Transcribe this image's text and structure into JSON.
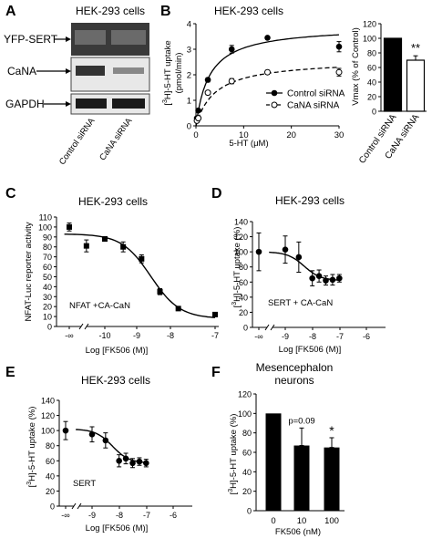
{
  "panel_labels": {
    "A": "A",
    "B": "B",
    "C": "C",
    "D": "D",
    "E": "E",
    "F": "F"
  },
  "chart_data": [
    {
      "id": "A",
      "type": "other",
      "title": "HEK-293 cells",
      "row_labels": [
        "YFP-SERT",
        "CaNA",
        "GAPDH"
      ],
      "lane_labels": [
        "Control siRNA",
        "CaNA siRNA"
      ]
    },
    {
      "id": "B_line",
      "type": "line",
      "title": "HEK-293 cells",
      "xlabel": "5-HT (μM)",
      "ylabel": "[3H]-5-HT uptake (pmol/min)",
      "xlim": [
        0,
        30
      ],
      "ylim": [
        0,
        4
      ],
      "xticks": [
        "0",
        "10",
        "20",
        "30"
      ],
      "yticks": [
        "0",
        "1",
        "2",
        "3",
        "4"
      ],
      "legend": {
        "position": "lower-right",
        "entries": [
          "Control siRNA",
          "CaNA siRNA"
        ]
      },
      "series": [
        {
          "name": "Control siRNA",
          "marker": "filled-circle",
          "style": "solid",
          "x": [
            0.2,
            0.5,
            2.5,
            7.5,
            15,
            30
          ],
          "y": [
            0.3,
            0.6,
            1.8,
            3.0,
            3.45,
            3.1
          ],
          "err": [
            0.05,
            0.05,
            0.08,
            0.15,
            0.05,
            0.2
          ],
          "fit": {
            "vmax": 3.9,
            "km": 2.8
          }
        },
        {
          "name": "CaNA siRNA",
          "marker": "open-circle",
          "style": "dashed",
          "x": [
            0.2,
            0.5,
            2.5,
            7.5,
            15,
            30
          ],
          "y": [
            0.2,
            0.3,
            1.3,
            1.75,
            2.1,
            2.1
          ],
          "err": [
            0.05,
            0.05,
            0.08,
            0.1,
            0.08,
            0.15
          ],
          "fit": {
            "vmax": 2.6,
            "km": 4.0
          }
        }
      ]
    },
    {
      "id": "B_bar",
      "type": "bar",
      "ylabel": "Vmax (% of Control)",
      "ylim": [
        0,
        120
      ],
      "yticks": [
        "0",
        "20",
        "40",
        "60",
        "80",
        "100",
        "120"
      ],
      "categories": [
        "Control siRNA",
        "CaNA siRNA"
      ],
      "values": [
        100,
        70
      ],
      "errors": [
        0,
        6
      ],
      "fills": [
        "#000000",
        "#ffffff"
      ],
      "annotations": [
        {
          "category": "CaNA siRNA",
          "text": "**"
        }
      ]
    },
    {
      "id": "C",
      "type": "scatter",
      "title": "HEK-293 cells",
      "xlabel": "Log [FK506 (M)]",
      "ylabel": "NFAT-Luc reporter activity",
      "xticks": [
        "-∞",
        "-10",
        "-9",
        "-8",
        "-7"
      ],
      "yticks": [
        "0",
        "10",
        "20",
        "30",
        "40",
        "50",
        "60",
        "70",
        "80",
        "90",
        "100",
        "110"
      ],
      "ylim": [
        0,
        110
      ],
      "annotation": "NFAT +CA-CaN",
      "series": [
        {
          "name": "NFAT +CA-CaN",
          "marker": "filled-square",
          "x": [
            -11.5,
            -10.5,
            -10,
            -9.5,
            -9,
            -8.5,
            -8,
            -7
          ],
          "y": [
            100,
            81,
            88,
            80,
            68,
            35,
            18,
            12
          ],
          "err": [
            4,
            6,
            2,
            5,
            4,
            3,
            2,
            1
          ],
          "fit": {
            "top": 93,
            "bottom": 8,
            "logIC50": -8.75,
            "hill": 1.1
          }
        }
      ]
    },
    {
      "id": "D",
      "type": "scatter",
      "title": "HEK-293 cells",
      "xlabel": "Log [FK506 (M)]",
      "ylabel": "[3H]-5-HT uptake (%)",
      "xticks": [
        "-∞",
        "-9",
        "-8",
        "-7",
        "-6"
      ],
      "yticks": [
        "0",
        "20",
        "40",
        "60",
        "80",
        "100",
        "120",
        "140"
      ],
      "ylim": [
        0,
        140
      ],
      "annotation": "SERT + CA-CaN",
      "series": [
        {
          "name": "SERT + CA-CaN",
          "marker": "filled-circle",
          "x": [
            -10,
            -9,
            -8.5,
            -8,
            -7.75,
            -7.5,
            -7.25,
            -7
          ],
          "y": [
            100,
            103,
            93,
            65,
            68,
            62,
            63,
            65
          ],
          "err": [
            25,
            18,
            20,
            10,
            8,
            6,
            7,
            5
          ],
          "fit": {
            "top": 100,
            "bottom": 62,
            "logIC50": -8.3,
            "hill": 1.4
          }
        }
      ]
    },
    {
      "id": "E",
      "type": "scatter",
      "title": "HEK-293 cells",
      "xlabel": "Log [FK506 (M)]",
      "ylabel": "[3H]-5-HT uptake (%)",
      "xticks": [
        "-∞",
        "-9",
        "-8",
        "-7",
        "-6"
      ],
      "yticks": [
        "0",
        "20",
        "40",
        "60",
        "80",
        "100",
        "120",
        "140"
      ],
      "ylim": [
        0,
        140
      ],
      "annotation": "SERT",
      "series": [
        {
          "name": "SERT",
          "marker": "filled-circle",
          "x": [
            -10,
            -9,
            -8.5,
            -8,
            -7.75,
            -7.5,
            -7.25,
            -7
          ],
          "y": [
            100,
            95,
            87,
            60,
            63,
            57,
            59,
            57
          ],
          "err": [
            12,
            10,
            10,
            8,
            7,
            6,
            5,
            5
          ],
          "fit": {
            "top": 102,
            "bottom": 57,
            "logIC50": -8.25,
            "hill": 1.4
          }
        }
      ]
    },
    {
      "id": "F",
      "type": "bar",
      "title_lines": [
        "Mesencephalon",
        "neurons"
      ],
      "xlabel": "FK506 (nM)",
      "ylabel": "[3H]-5-HT uptake (%)",
      "ylim": [
        0,
        120
      ],
      "yticks": [
        "0",
        "20",
        "40",
        "60",
        "80",
        "100",
        "120"
      ],
      "categories": [
        "0",
        "10",
        "100"
      ],
      "values": [
        100,
        67,
        65
      ],
      "errors": [
        0,
        18,
        10
      ],
      "annotations": [
        {
          "category": "10",
          "text": "p=0.09"
        },
        {
          "category": "100",
          "text": "*"
        }
      ]
    }
  ]
}
